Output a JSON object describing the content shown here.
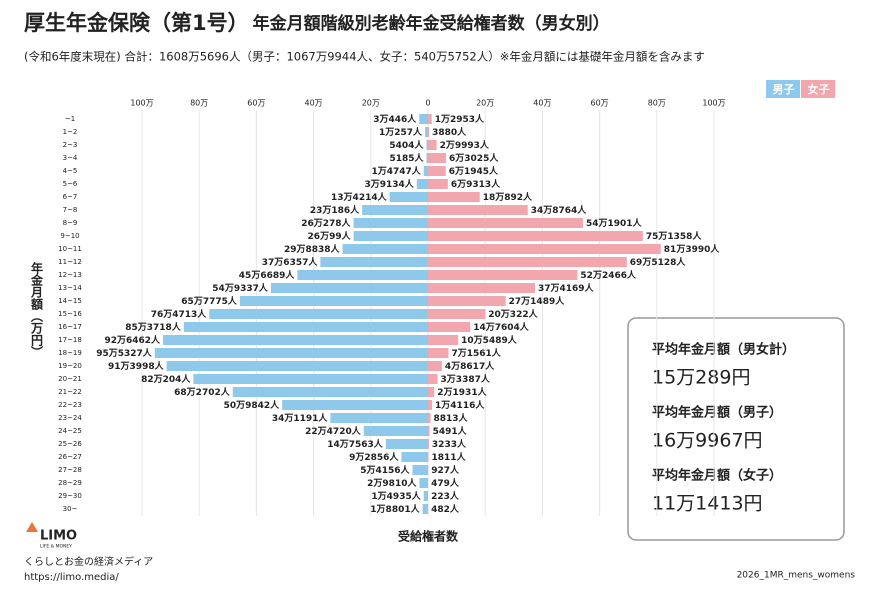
{
  "chart_data": {
    "type": "pyramid",
    "title": [
      "厚生年金保険（第1号）",
      "年金月額階級別老齢年金受給権者数（男女別）"
    ],
    "subtitle": "(令和6年度末現在) 合計：1608万5696人（男子：1067万9944人、女子：540万5752人）※年金月額には基礎年金月額を含みます",
    "y_label": "年金月額（万円）",
    "x_label": "受給権者数",
    "categories": [
      "~1",
      "1~2",
      "2~3",
      "3~4",
      "4~5",
      "5~6",
      "6~7",
      "7~8",
      "8~9",
      "9~10",
      "10~11",
      "11~12",
      "12~13",
      "13~14",
      "14~15",
      "15~16",
      "16~17",
      "17~18",
      "18~19",
      "19~20",
      "20~21",
      "21~22",
      "22~23",
      "23~24",
      "24~25",
      "25~26",
      "26~27",
      "27~28",
      "28~29",
      "29~30",
      "30~"
    ],
    "series": [
      {
        "name": "男子",
        "color": "#8ec8ea",
        "values": [
          3.0446,
          1.0257,
          0.5404,
          0.5185,
          1.4747,
          3.9134,
          13.4214,
          23.0186,
          26.0278,
          26.0099,
          29.8838,
          37.6357,
          45.6689,
          54.9337,
          65.7775,
          76.4713,
          85.3718,
          92.6462,
          95.5327,
          91.3998,
          82.0204,
          68.2702,
          50.9842,
          34.1191,
          22.472,
          14.7563,
          9.2856,
          5.4156,
          2.981,
          1.4935,
          1.8801
        ],
        "value_labels": [
          "3万446人",
          "1万257人",
          "5404人",
          "5185人",
          "1万4747人",
          "3万9134人",
          "13万4214人",
          "23万186人",
          "26万278人",
          "26万99人",
          "29万8838人",
          "37万6357人",
          "45万6689人",
          "54万9337人",
          "65万7775人",
          "76万4713人",
          "85万3718人",
          "92万6462人",
          "95万5327人",
          "91万3998人",
          "82万204人",
          "68万2702人",
          "50万9842人",
          "34万1191人",
          "22万4720人",
          "14万7563人",
          "9万2856人",
          "5万4156人",
          "2万9810人",
          "1万4935人",
          "1万8801人"
        ]
      },
      {
        "name": "女子",
        "color": "#f2a6ae",
        "values": [
          1.2953,
          0.388,
          2.9993,
          6.3025,
          6.1945,
          6.9313,
          18.0892,
          34.8764,
          54.1901,
          75.1358,
          81.399,
          69.5128,
          52.2466,
          37.4169,
          27.1489,
          20.0322,
          14.7604,
          10.5489,
          7.1561,
          4.8617,
          3.3387,
          2.1931,
          1.4116,
          0.8813,
          0.5491,
          0.3233,
          0.1811,
          0.0927,
          0.0479,
          0.0223,
          0.0482
        ],
        "value_labels": [
          "1万2953人",
          "3880人",
          "2万9993人",
          "6万3025人",
          "6万1945人",
          "6万9313人",
          "18万892人",
          "34万8764人",
          "54万1901人",
          "75万1358人",
          "81万3990人",
          "69万5128人",
          "52万2466人",
          "37万4169人",
          "27万1489人",
          "20万322人",
          "14万7604人",
          "10万5489人",
          "7万1561人",
          "4万8617人",
          "3万3387人",
          "2万1931人",
          "1万4116人",
          "8813人",
          "5491人",
          "3233人",
          "1811人",
          "927人",
          "479人",
          "223人",
          "482人"
        ]
      }
    ],
    "xlim": [
      0,
      100
    ],
    "xticks": [
      0,
      {
        "value": 20,
        "label": "20万"
      },
      {
        "value": 40,
        "label": "40万"
      },
      {
        "value": 60,
        "label": "60万"
      },
      {
        "value": 80,
        "label": "80万"
      },
      {
        "value": 100,
        "label": "100万"
      }
    ],
    "grid": true,
    "legend": "top-right",
    "summary": [
      {
        "label": "平均年金月額（男女計）",
        "value": "15万289円"
      },
      {
        "label": "平均年金月額（男子）",
        "value": "16万9967円"
      },
      {
        "label": "平均年金月額（女子）",
        "value": "11万1413円"
      }
    ]
  },
  "footer": {
    "logo": "LIMO",
    "logo_sub": "LIFE & MONEY",
    "tagline": "くらしとお金の経済メディア",
    "url": "https://limo.media/",
    "watermark": "2026_1MR_mens_womens"
  }
}
